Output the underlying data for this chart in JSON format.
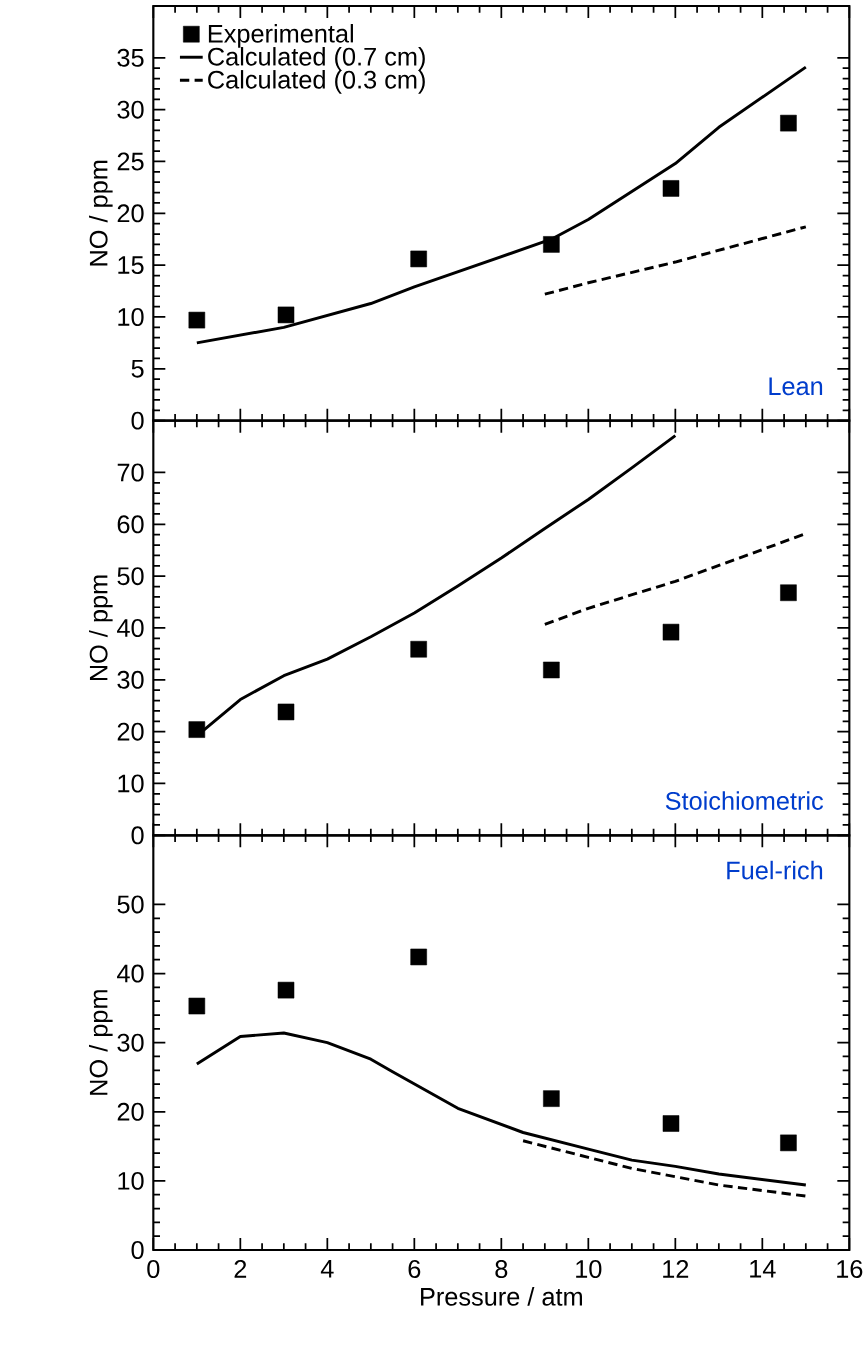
{
  "chart_data": [
    {
      "type": "line",
      "ylabel": "NO / ppm",
      "xlim": [
        0,
        16
      ],
      "xticks": [
        0,
        2,
        4,
        6,
        8,
        10,
        12,
        14,
        16
      ],
      "ylim": [
        0,
        40
      ],
      "yticks": [
        0,
        5,
        10,
        15,
        20,
        25,
        30,
        35
      ],
      "tick_labels": "y",
      "legend": "top left",
      "annotations": [
        "Lean"
      ],
      "series": [
        {
          "name": "Experimental",
          "type": "scatter",
          "marker": "square",
          "color": "#000000",
          "x": [
            1.0,
            3.05,
            6.1,
            9.15,
            11.9,
            14.6
          ],
          "values": [
            9.7,
            10.2,
            15.6,
            17.0,
            22.4,
            28.7
          ]
        },
        {
          "name": "Calculated (0.7 cm)",
          "line_style": "solid",
          "color": "#000000",
          "x": [
            1,
            3,
            5,
            6,
            9.15,
            10,
            12,
            13,
            15
          ],
          "values": [
            7.5,
            9.0,
            11.3,
            12.9,
            17.5,
            19.4,
            24.8,
            28.3,
            34.1
          ]
        },
        {
          "name": "Calculated (0.3 cm)",
          "line_style": "dashed",
          "color": "#000000",
          "x": [
            9,
            10,
            12,
            15
          ],
          "values": [
            12.2,
            13.3,
            15.3,
            18.7
          ]
        }
      ]
    },
    {
      "type": "line",
      "ylabel": "NO / ppm",
      "xlim": [
        0,
        16
      ],
      "xticks": [
        0,
        2,
        4,
        6,
        8,
        10,
        12,
        14,
        16
      ],
      "ylim": [
        0,
        80
      ],
      "yticks": [
        0,
        10,
        20,
        30,
        40,
        50,
        60,
        70
      ],
      "tick_labels": "y",
      "annotations": [
        "Stoichiometric"
      ],
      "series": [
        {
          "type": "scatter",
          "marker": "square",
          "color": "#000000",
          "x": [
            1.0,
            3.05,
            6.1,
            9.15,
            11.9,
            14.6
          ],
          "values": [
            20.4,
            23.8,
            35.9,
            31.9,
            39.2,
            46.8
          ]
        },
        {
          "line_style": "solid",
          "color": "#000000",
          "x": [
            1,
            2,
            3,
            4,
            5,
            6,
            7,
            8,
            9,
            10,
            11,
            12
          ],
          "values": [
            19.2,
            26.2,
            30.8,
            34.0,
            38.3,
            42.9,
            48.1,
            53.5,
            59.2,
            64.8,
            70.9,
            77.1
          ]
        },
        {
          "line_style": "dashed",
          "color": "#000000",
          "x": [
            9,
            10,
            12,
            15
          ],
          "values": [
            40.7,
            43.8,
            49.0,
            58.2
          ]
        }
      ]
    },
    {
      "type": "line",
      "ylabel": "NO / ppm",
      "xlabel": "Pressure / atm",
      "xlim": [
        0,
        16
      ],
      "xticks": [
        0,
        2,
        4,
        6,
        8,
        10,
        12,
        14,
        16
      ],
      "ylim": [
        0,
        60
      ],
      "yticks": [
        0,
        10,
        20,
        30,
        40,
        50
      ],
      "annotations": [
        "Fuel-rich"
      ],
      "series": [
        {
          "type": "scatter",
          "marker": "square",
          "color": "#000000",
          "x": [
            1.0,
            3.05,
            6.1,
            9.15,
            11.9,
            14.6
          ],
          "values": [
            35.3,
            37.6,
            42.4,
            21.9,
            18.3,
            15.5
          ]
        },
        {
          "line_style": "solid",
          "color": "#000000",
          "x": [
            1,
            2,
            3,
            4,
            5,
            5.5,
            7,
            8.5,
            10,
            11,
            12,
            13,
            15
          ],
          "values": [
            26.9,
            30.9,
            31.4,
            30.0,
            27.6,
            25.8,
            20.5,
            17.0,
            14.6,
            13.0,
            12.1,
            11.0,
            9.4
          ]
        },
        {
          "line_style": "dashed",
          "color": "#000000",
          "x": [
            8.5,
            10,
            11,
            12,
            13,
            15
          ],
          "values": [
            15.8,
            13.4,
            11.8,
            10.6,
            9.4,
            7.8
          ]
        }
      ]
    }
  ]
}
